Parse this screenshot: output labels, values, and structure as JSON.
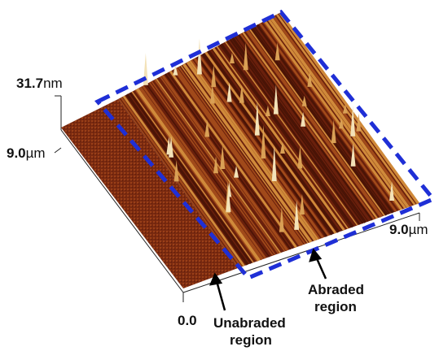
{
  "axes": {
    "z_max": {
      "value": "31.7",
      "unit": "nm"
    },
    "y_max": {
      "value": "9.0",
      "unit": "µm"
    },
    "x_max": {
      "value": "9.0",
      "unit": "µm"
    },
    "origin": "0.0"
  },
  "annotations": {
    "unabraded": {
      "lines": [
        "Unabraded",
        "region"
      ]
    },
    "abraded": {
      "lines": [
        "Abraded",
        "region"
      ]
    }
  }
}
